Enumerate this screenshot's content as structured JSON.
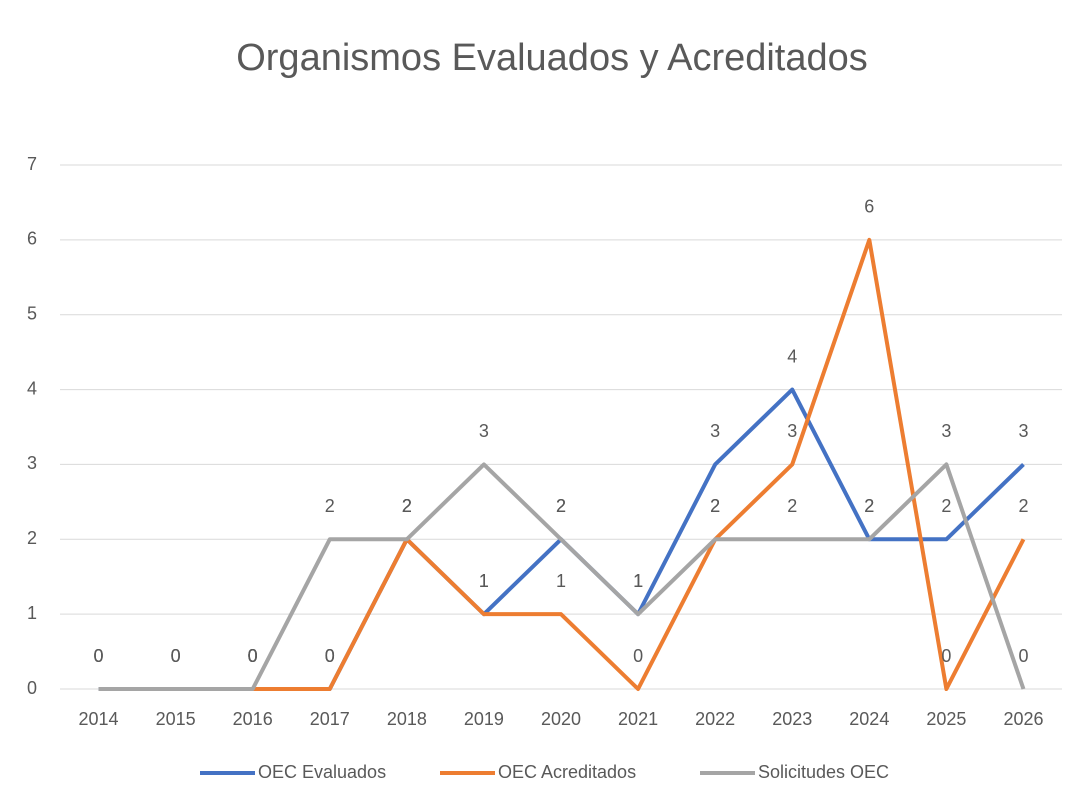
{
  "chart_data": {
    "type": "line",
    "title": "Organismos Evaluados y Acreditados",
    "categories": [
      "2014",
      "2015",
      "2016",
      "2017",
      "2018",
      "2019",
      "2020",
      "2021",
      "2022",
      "2023",
      "2024",
      "2025",
      "2026"
    ],
    "series": [
      {
        "name": "OEC Evaluados",
        "color": "#4472c4",
        "values": [
          0,
          0,
          0,
          0,
          2,
          1,
          2,
          1,
          3,
          4,
          2,
          2,
          3
        ]
      },
      {
        "name": "OEC Acreditados",
        "color": "#ed7d31",
        "values": [
          null,
          null,
          0,
          0,
          2,
          1,
          1,
          0,
          2,
          3,
          6,
          0,
          2
        ]
      },
      {
        "name": "Solicitudes OEC",
        "color": "#a5a5a5",
        "values": [
          0,
          0,
          0,
          2,
          2,
          3,
          2,
          1,
          2,
          2,
          2,
          3,
          0
        ]
      }
    ],
    "ylim": [
      0,
      7
    ],
    "yticks": [
      0,
      1,
      2,
      3,
      4,
      5,
      6,
      7
    ],
    "grid": true,
    "legend": "bottom"
  }
}
